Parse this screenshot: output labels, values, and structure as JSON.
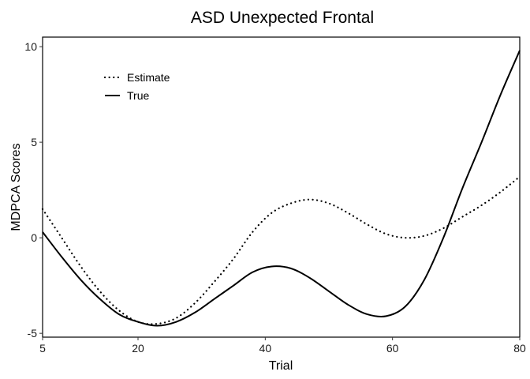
{
  "chart_data": {
    "type": "line",
    "title": "ASD Unexpected Frontal",
    "xlabel": "Trial",
    "ylabel": "MDPCA Scores",
    "xlim": [
      5,
      80
    ],
    "ylim": [
      -5.2,
      10.5
    ],
    "xticks": [
      5,
      20,
      40,
      60,
      80
    ],
    "yticks": [
      -5,
      0,
      5,
      10
    ],
    "grid": false,
    "legend_position": "top-left",
    "series": [
      {
        "name": "Estimate",
        "line_style": "dotted",
        "color": "#000000",
        "x": [
          5,
          8,
          11,
          14,
          17,
          20,
          23,
          26,
          29,
          32,
          35,
          38,
          41,
          44,
          47,
          50,
          53,
          56,
          59,
          62,
          65,
          68,
          71,
          74,
          77,
          80
        ],
        "y": [
          1.5,
          0.0,
          -1.5,
          -2.8,
          -3.8,
          -4.4,
          -4.5,
          -4.2,
          -3.4,
          -2.3,
          -1.1,
          0.3,
          1.3,
          1.8,
          2.0,
          1.8,
          1.3,
          0.7,
          0.2,
          0.0,
          0.1,
          0.5,
          1.1,
          1.7,
          2.4,
          3.2
        ]
      },
      {
        "name": "True",
        "line_style": "solid",
        "color": "#000000",
        "x": [
          5,
          8,
          11,
          14,
          17,
          20,
          23,
          26,
          29,
          32,
          35,
          38,
          41,
          44,
          47,
          50,
          53,
          56,
          59,
          62,
          65,
          68,
          71,
          74,
          77,
          80
        ],
        "y": [
          0.3,
          -1.0,
          -2.2,
          -3.2,
          -4.0,
          -4.4,
          -4.6,
          -4.4,
          -3.9,
          -3.2,
          -2.5,
          -1.8,
          -1.5,
          -1.6,
          -2.1,
          -2.8,
          -3.5,
          -4.0,
          -4.1,
          -3.6,
          -2.2,
          0.0,
          2.6,
          5.0,
          7.5,
          9.8
        ]
      }
    ]
  }
}
